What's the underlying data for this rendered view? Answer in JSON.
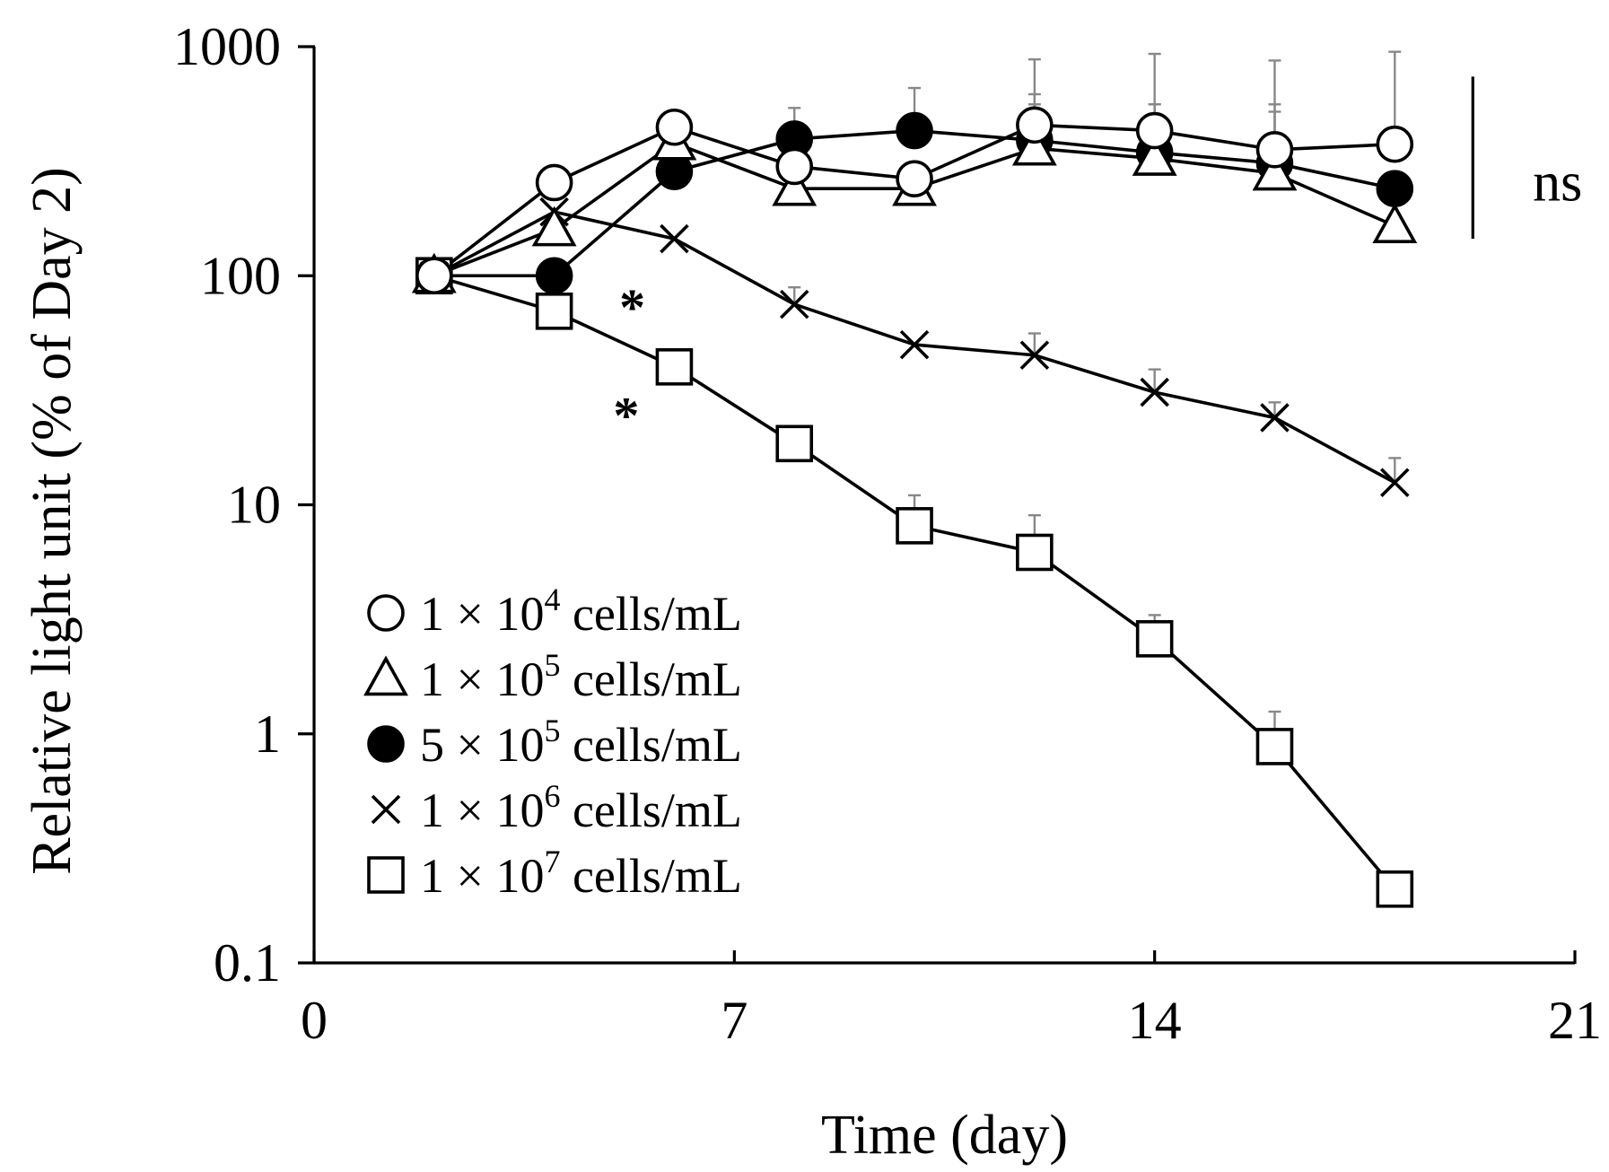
{
  "chart_data": {
    "type": "line",
    "xlabel": "Time (day)",
    "ylabel": "Relative light unit (% of Day 2)",
    "x_ticks": [
      0,
      7,
      14,
      21
    ],
    "y_ticks": [
      0.1,
      1,
      10,
      100,
      1000
    ],
    "x_tick_labels": [
      "0",
      "7",
      "14",
      "21"
    ],
    "y_tick_labels": [
      "0.1",
      "1",
      "10",
      "100",
      "1000"
    ],
    "xlim": [
      0,
      21
    ],
    "ylim": [
      0.1,
      1000
    ],
    "yscale": "log",
    "grid": false,
    "legend_position": "bottom-left",
    "series": [
      {
        "name": "1 × 10⁴ cells/mL",
        "label_parts": [
          "1 × 10",
          "4",
          " cells/mL"
        ],
        "marker": "circle-open",
        "x": [
          2,
          4,
          6,
          8,
          10,
          12,
          14,
          16,
          18
        ],
        "values": [
          100,
          255,
          445,
          300,
          265,
          455,
          430,
          355,
          375
        ],
        "err_upper": [
          null,
          null,
          520,
          null,
          null,
          880,
          930,
          870,
          950
        ]
      },
      {
        "name": "1 × 10⁵ cells/mL",
        "label_parts": [
          "1 × 10",
          "5",
          " cells/mL"
        ],
        "marker": "triangle-open",
        "x": [
          2,
          4,
          6,
          8,
          10,
          12,
          14,
          16,
          18
        ],
        "values": [
          100,
          160,
          380,
          240,
          240,
          360,
          325,
          280,
          165
        ],
        "err_upper": [
          null,
          null,
          500,
          null,
          null,
          560,
          560,
          560,
          null
        ]
      },
      {
        "name": "5 × 10⁵ cells/mL",
        "label_parts": [
          "5 × 10",
          "5",
          " cells/mL"
        ],
        "marker": "circle-filled",
        "x": [
          2,
          4,
          6,
          8,
          10,
          12,
          14,
          16,
          18
        ],
        "values": [
          100,
          100,
          285,
          395,
          430,
          390,
          345,
          310,
          240
        ],
        "err_upper": [
          null,
          null,
          null,
          540,
          660,
          620,
          560,
          520,
          null
        ]
      },
      {
        "name": "1 × 10⁶ cells/mL",
        "label_parts": [
          "1 × 10",
          "6",
          " cells/mL"
        ],
        "marker": "cross",
        "x": [
          2,
          4,
          6,
          8,
          10,
          12,
          14,
          16,
          18
        ],
        "values": [
          100,
          190,
          145,
          75,
          50,
          45,
          31,
          24,
          12.5
        ],
        "err_upper": [
          null,
          null,
          null,
          89,
          null,
          56,
          39,
          28,
          16
        ]
      },
      {
        "name": "1 × 10⁷ cells/mL",
        "label_parts": [
          "1 × 10",
          "7",
          " cells/mL"
        ],
        "marker": "square-open",
        "x": [
          2,
          4,
          6,
          8,
          10,
          12,
          14,
          16,
          18
        ],
        "values": [
          100,
          70,
          40,
          18.5,
          8.1,
          6.2,
          2.6,
          0.88,
          0.21
        ],
        "err_upper": [
          null,
          null,
          null,
          null,
          11,
          9,
          3.3,
          1.25,
          null
        ]
      }
    ],
    "annotations": [
      {
        "text": "*",
        "x": 5.3,
        "y": 80
      },
      {
        "text": "*",
        "x": 5.2,
        "y": 27
      },
      {
        "text": "ns",
        "x": 20.3,
        "y": 250
      }
    ],
    "bracket": {
      "x": 19.3,
      "y_from": 145,
      "y_to": 740
    }
  }
}
